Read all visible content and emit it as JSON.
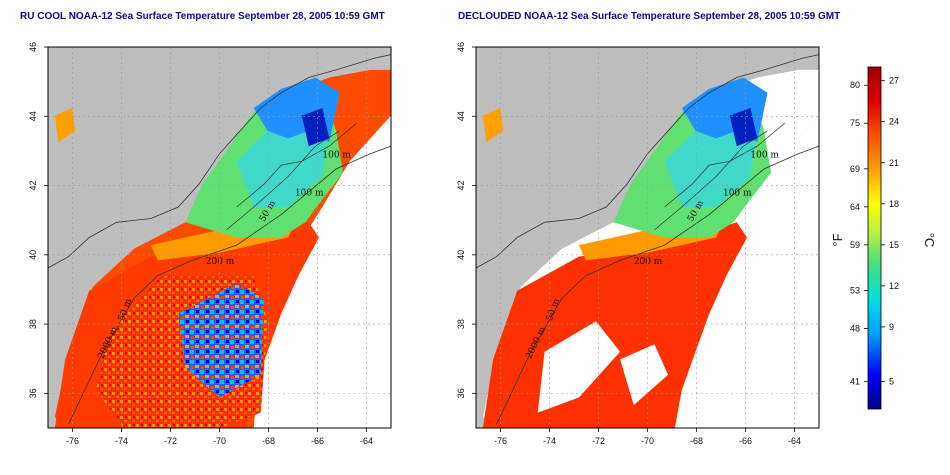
{
  "panels": [
    {
      "title": "RU COOL NOAA-12 Sea Surface Temperature September 28, 2005 10:59 GMT",
      "variant": "raw"
    },
    {
      "title": "DECLOUDED NOAA-12 Sea Surface Temperature September 28, 2005 10:59 GMT",
      "variant": "declouded"
    }
  ],
  "axes": {
    "lon_ticks": [
      "-76",
      "-74",
      "-72",
      "-70",
      "-68",
      "-66",
      "-64"
    ],
    "lat_ticks": [
      "36",
      "38",
      "40",
      "42",
      "44",
      "46"
    ],
    "lon_range": [
      -77,
      -63
    ],
    "lat_range": [
      35,
      46
    ]
  },
  "contour_labels": [
    "100 m",
    "100 m",
    "50 m",
    "200 m",
    "50 m",
    "2000 m"
  ],
  "colorbar": {
    "fahrenheit_label": "°F",
    "celsius_label": "°C",
    "fahrenheit_ticks": [
      "80",
      "75",
      "69",
      "64",
      "59",
      "53",
      "48",
      "41"
    ],
    "celsius_ticks": [
      "27",
      "24",
      "21",
      "18",
      "15",
      "12",
      "9",
      "5"
    ],
    "range_c": [
      3,
      28
    ],
    "colors": [
      "#00008b",
      "#0000ff",
      "#00a0ff",
      "#00e0e0",
      "#40e080",
      "#c0f040",
      "#ffff00",
      "#ffa000",
      "#ff5000",
      "#e00000",
      "#a00000"
    ]
  },
  "colors": {
    "land": "#bebebe",
    "no_data": "#ffffff",
    "title": "#0a0a8c"
  }
}
